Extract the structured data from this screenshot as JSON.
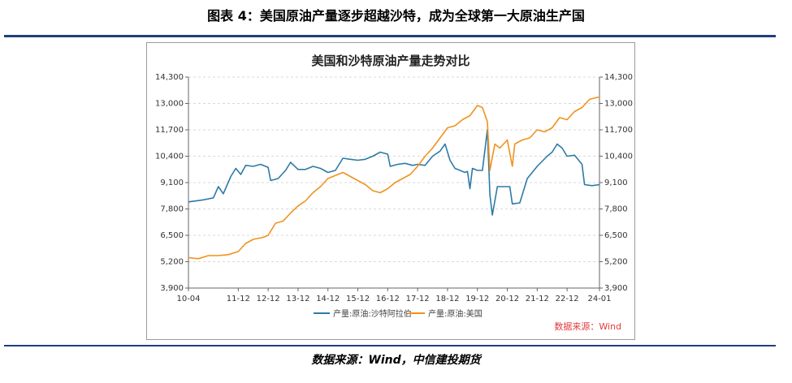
{
  "figure_caption": "图表 4：美国原油产量逐步超越沙特，成为全球第一大原油生产国",
  "source_caption": "数据来源：Wind，中信建投期货",
  "chart_data": {
    "type": "line",
    "title": "美国和沙特原油产量走势对比",
    "source_note": "数据来源：Wind",
    "x_ticks": [
      "10-04",
      "11-12",
      "12-12",
      "13-12",
      "14-12",
      "15-12",
      "16-12",
      "17-12",
      "18-12",
      "19-12",
      "20-12",
      "21-12",
      "22-12",
      "24-01"
    ],
    "y_left": {
      "ticks": [
        "3,900",
        "5,200",
        "6,500",
        "7,800",
        "9,100",
        "10,400",
        "11,700",
        "13,000",
        "14,300"
      ],
      "range": [
        3900,
        14300
      ]
    },
    "y_right": {
      "ticks": [
        "3,900",
        "5,200",
        "6,500",
        "7,800",
        "9,100",
        "10,400",
        "11,700",
        "13,000",
        "14,300"
      ],
      "range": [
        3900,
        14300
      ]
    },
    "grid": "horizontal dashed",
    "legend_position": "bottom",
    "series": [
      {
        "name": "产量:原油:沙特阿拉伯",
        "color": "#2e7aa6",
        "points": [
          [
            "2010-04",
            8150
          ],
          [
            "2010-10",
            8250
          ],
          [
            "2011-02",
            8350
          ],
          [
            "2011-04",
            8900
          ],
          [
            "2011-06",
            8550
          ],
          [
            "2011-09",
            9400
          ],
          [
            "2011-11",
            9800
          ],
          [
            "2012-01",
            9500
          ],
          [
            "2012-03",
            9950
          ],
          [
            "2012-06",
            9900
          ],
          [
            "2012-09",
            10000
          ],
          [
            "2012-12",
            9850
          ],
          [
            "2013-01",
            9200
          ],
          [
            "2013-04",
            9300
          ],
          [
            "2013-07",
            9700
          ],
          [
            "2013-09",
            10100
          ],
          [
            "2013-12",
            9750
          ],
          [
            "2014-03",
            9750
          ],
          [
            "2014-06",
            9900
          ],
          [
            "2014-09",
            9800
          ],
          [
            "2014-12",
            9600
          ],
          [
            "2015-03",
            9700
          ],
          [
            "2015-06",
            10300
          ],
          [
            "2015-09",
            10250
          ],
          [
            "2015-12",
            10200
          ],
          [
            "2016-03",
            10250
          ],
          [
            "2016-06",
            10400
          ],
          [
            "2016-09",
            10600
          ],
          [
            "2016-12",
            10500
          ],
          [
            "2017-01",
            9900
          ],
          [
            "2017-04",
            10000
          ],
          [
            "2017-07",
            10050
          ],
          [
            "2017-10",
            9950
          ],
          [
            "2017-12",
            10000
          ],
          [
            "2018-03",
            9950
          ],
          [
            "2018-06",
            10400
          ],
          [
            "2018-09",
            10650
          ],
          [
            "2018-11",
            11000
          ],
          [
            "2019-01",
            10200
          ],
          [
            "2019-03",
            9800
          ],
          [
            "2019-05",
            9700
          ],
          [
            "2019-07",
            9600
          ],
          [
            "2019-08",
            9650
          ],
          [
            "2019-09",
            8800
          ],
          [
            "2019-10",
            9800
          ],
          [
            "2019-12",
            9700
          ],
          [
            "2020-02",
            9700
          ],
          [
            "2020-04",
            11700
          ],
          [
            "2020-05",
            8500
          ],
          [
            "2020-06",
            7500
          ],
          [
            "2020-08",
            8900
          ],
          [
            "2020-11",
            8900
          ],
          [
            "2021-01",
            8900
          ],
          [
            "2021-02",
            8050
          ],
          [
            "2021-05",
            8100
          ],
          [
            "2021-08",
            9300
          ],
          [
            "2021-12",
            9900
          ],
          [
            "2022-04",
            10400
          ],
          [
            "2022-06",
            10600
          ],
          [
            "2022-08",
            11000
          ],
          [
            "2022-10",
            10800
          ],
          [
            "2022-12",
            10400
          ],
          [
            "2023-03",
            10450
          ],
          [
            "2023-06",
            10000
          ],
          [
            "2023-07",
            9000
          ],
          [
            "2023-10",
            8950
          ],
          [
            "2024-01",
            9000
          ]
        ]
      },
      {
        "name": "产量:原油:美国",
        "color": "#f0921e",
        "points": [
          [
            "2010-04",
            5400
          ],
          [
            "2010-08",
            5350
          ],
          [
            "2010-12",
            5500
          ],
          [
            "2011-04",
            5500
          ],
          [
            "2011-08",
            5550
          ],
          [
            "2011-12",
            5700
          ],
          [
            "2012-03",
            6100
          ],
          [
            "2012-06",
            6300
          ],
          [
            "2012-10",
            6400
          ],
          [
            "2012-12",
            6500
          ],
          [
            "2013-03",
            7100
          ],
          [
            "2013-06",
            7200
          ],
          [
            "2013-09",
            7600
          ],
          [
            "2013-12",
            7950
          ],
          [
            "2014-03",
            8200
          ],
          [
            "2014-06",
            8600
          ],
          [
            "2014-09",
            8900
          ],
          [
            "2014-12",
            9300
          ],
          [
            "2015-03",
            9450
          ],
          [
            "2015-06",
            9600
          ],
          [
            "2015-09",
            9400
          ],
          [
            "2015-12",
            9200
          ],
          [
            "2016-03",
            9000
          ],
          [
            "2016-06",
            8700
          ],
          [
            "2016-09",
            8600
          ],
          [
            "2016-12",
            8800
          ],
          [
            "2017-03",
            9100
          ],
          [
            "2017-06",
            9300
          ],
          [
            "2017-09",
            9500
          ],
          [
            "2017-12",
            9900
          ],
          [
            "2018-03",
            10400
          ],
          [
            "2018-06",
            10800
          ],
          [
            "2018-09",
            11300
          ],
          [
            "2018-12",
            11800
          ],
          [
            "2019-03",
            11900
          ],
          [
            "2019-06",
            12200
          ],
          [
            "2019-09",
            12400
          ],
          [
            "2019-12",
            12900
          ],
          [
            "2020-02",
            12800
          ],
          [
            "2020-04",
            12100
          ],
          [
            "2020-05",
            9700
          ],
          [
            "2020-07",
            11000
          ],
          [
            "2020-09",
            10800
          ],
          [
            "2020-12",
            11200
          ],
          [
            "2021-02",
            9900
          ],
          [
            "2021-03",
            11000
          ],
          [
            "2021-06",
            11200
          ],
          [
            "2021-09",
            11300
          ],
          [
            "2021-12",
            11700
          ],
          [
            "2022-03",
            11600
          ],
          [
            "2022-06",
            11800
          ],
          [
            "2022-09",
            12300
          ],
          [
            "2022-12",
            12200
          ],
          [
            "2023-03",
            12600
          ],
          [
            "2023-06",
            12800
          ],
          [
            "2023-09",
            13200
          ],
          [
            "2023-12",
            13300
          ],
          [
            "2024-01",
            13300
          ]
        ]
      }
    ]
  }
}
